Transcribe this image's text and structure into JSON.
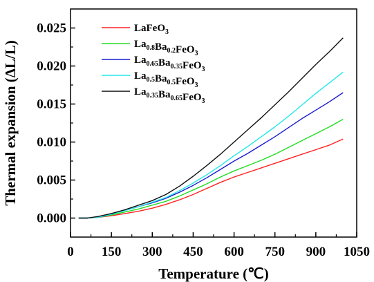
{
  "chart_data": {
    "type": "line",
    "xlabel": "Temperature (℃)",
    "ylabel": "Thermal expansion (ΔL/L)",
    "xlim": [
      0,
      1050
    ],
    "ylim": [
      -0.0025,
      0.0275
    ],
    "xticks": [
      "0",
      "150",
      "300",
      "450",
      "600",
      "750",
      "900",
      "1050"
    ],
    "yticks": [
      "0.000",
      "0.005",
      "0.010",
      "0.015",
      "0.020",
      "0.025"
    ],
    "legend_position": "top-left",
    "grid": false,
    "series": [
      {
        "name": "LaFeO3",
        "label_parts": [
          [
            "LaFeO",
            ""
          ],
          [
            "3",
            "sub"
          ]
        ],
        "color": "#ff2020",
        "x": [
          30,
          60,
          100,
          150,
          200,
          250,
          300,
          350,
          400,
          450,
          500,
          550,
          600,
          650,
          700,
          750,
          800,
          850,
          900,
          950,
          1000
        ],
        "y": [
          0.0,
          0.0,
          0.0001,
          0.0003,
          0.0006,
          0.0009,
          0.0013,
          0.0018,
          0.0024,
          0.0031,
          0.0039,
          0.0047,
          0.0054,
          0.006,
          0.0066,
          0.0072,
          0.0078,
          0.0084,
          0.009,
          0.0096,
          0.0104
        ]
      },
      {
        "name": "La0.8Ba0.2FeO3",
        "label_parts": [
          [
            "La",
            ""
          ],
          [
            "0.8",
            "sub"
          ],
          [
            "Ba",
            ""
          ],
          [
            "0.2",
            "sub"
          ],
          [
            "FeO",
            ""
          ],
          [
            "3",
            "sub"
          ]
        ],
        "color": "#22dd22",
        "x": [
          30,
          60,
          100,
          150,
          200,
          250,
          300,
          350,
          400,
          450,
          500,
          550,
          600,
          650,
          700,
          750,
          800,
          850,
          900,
          950,
          1000
        ],
        "y": [
          0.0,
          0.0,
          0.0001,
          0.0004,
          0.0008,
          0.0012,
          0.0017,
          0.0022,
          0.0029,
          0.0037,
          0.0045,
          0.0054,
          0.0062,
          0.0069,
          0.0076,
          0.0084,
          0.0093,
          0.0102,
          0.0111,
          0.012,
          0.013
        ]
      },
      {
        "name": "La0.65Ba0.35FeO3",
        "label_parts": [
          [
            "La",
            ""
          ],
          [
            "0.65",
            "sub"
          ],
          [
            "Ba",
            ""
          ],
          [
            "0.35",
            "sub"
          ],
          [
            "FeO",
            ""
          ],
          [
            "3",
            "sub"
          ]
        ],
        "color": "#1a1ad0",
        "x": [
          30,
          60,
          100,
          150,
          200,
          250,
          300,
          350,
          400,
          450,
          500,
          550,
          600,
          650,
          700,
          750,
          800,
          850,
          900,
          950,
          1000
        ],
        "y": [
          0.0,
          0.0,
          0.0001,
          0.0005,
          0.001,
          0.0015,
          0.002,
          0.0026,
          0.0034,
          0.0043,
          0.0053,
          0.0064,
          0.0075,
          0.0085,
          0.0096,
          0.0107,
          0.0119,
          0.0131,
          0.0142,
          0.0153,
          0.0165
        ]
      },
      {
        "name": "La0.5Ba0.5FeO3",
        "label_parts": [
          [
            "La",
            ""
          ],
          [
            "0.5",
            "sub"
          ],
          [
            "Ba",
            ""
          ],
          [
            "0.5",
            "sub"
          ],
          [
            "FeO",
            ""
          ],
          [
            "3",
            "sub"
          ]
        ],
        "color": "#22e8e8",
        "x": [
          30,
          60,
          100,
          150,
          200,
          250,
          300,
          350,
          400,
          450,
          500,
          550,
          600,
          650,
          700,
          750,
          800,
          850,
          900,
          950,
          1000
        ],
        "y": [
          0.0,
          0.0,
          0.0001,
          0.0005,
          0.001,
          0.0015,
          0.0021,
          0.0027,
          0.0036,
          0.0046,
          0.0057,
          0.0069,
          0.0082,
          0.0094,
          0.0107,
          0.012,
          0.0134,
          0.0149,
          0.0164,
          0.0178,
          0.0192
        ]
      },
      {
        "name": "La0.35Ba0.65FeO3",
        "label_parts": [
          [
            "La",
            ""
          ],
          [
            "0.35",
            "sub"
          ],
          [
            "Ba",
            ""
          ],
          [
            "0.65",
            "sub"
          ],
          [
            "FeO",
            ""
          ],
          [
            "3",
            "sub"
          ]
        ],
        "color": "#111111",
        "x": [
          30,
          60,
          100,
          150,
          200,
          250,
          300,
          350,
          400,
          450,
          500,
          550,
          600,
          650,
          700,
          750,
          800,
          850,
          900,
          950,
          1000
        ],
        "y": [
          0.0,
          0.0,
          0.0002,
          0.0006,
          0.0011,
          0.0017,
          0.0023,
          0.0031,
          0.0042,
          0.0055,
          0.0069,
          0.0084,
          0.01,
          0.0116,
          0.0132,
          0.0149,
          0.0166,
          0.0184,
          0.0202,
          0.0219,
          0.0237
        ]
      }
    ]
  }
}
